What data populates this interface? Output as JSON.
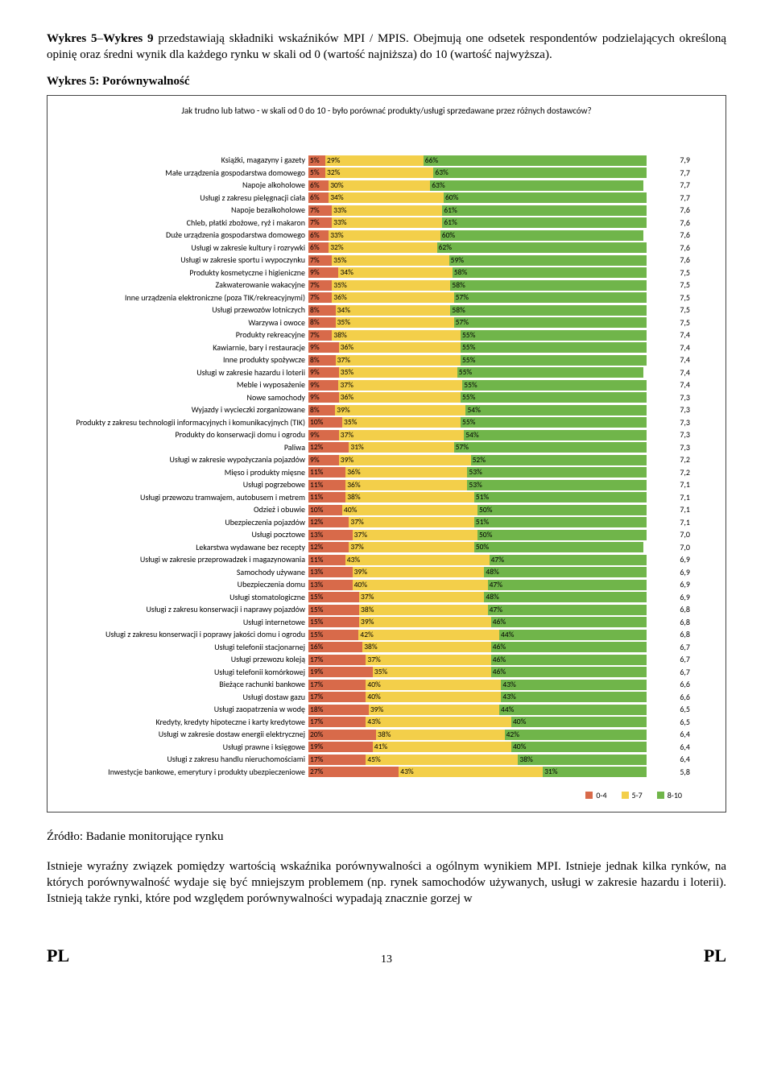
{
  "intro": {
    "bold_prefix": "Wykres 5",
    "dash": "–",
    "bold_mid": "Wykres 9",
    "text": " przedstawiają składniki wskaźników MPI / MPIS. Obejmują one odsetek respondentów podzielających określoną opinię oraz średni wynik dla każdego rynku w skali od 0 (wartość najniższa) do 10 (wartość najwyższa)."
  },
  "chart_heading": "Wykres 5: Porównywalność",
  "chart_question": "Jak trudno lub łatwo - w skali od 0 do 10 - było porównać produkty/usługi sprzedawane przez różnych dostawców?",
  "legend": {
    "low": "0-4",
    "mid": "5-7",
    "high": "8-10"
  },
  "colors": {
    "low": "#d86a4a",
    "mid": "#f3cf4a",
    "high": "#70b54a"
  },
  "rows": [
    {
      "label": "Książki, magazyny i gazety",
      "low": 5,
      "mid": 29,
      "high": 66,
      "score": "7,9"
    },
    {
      "label": "Małe urządzenia gospodarstwa domowego",
      "low": 5,
      "mid": 32,
      "high": 63,
      "score": "7,7"
    },
    {
      "label": "Napoje alkoholowe",
      "low": 6,
      "mid": 30,
      "high": 63,
      "score": "7,7"
    },
    {
      "label": "Usługi z zakresu pielęgnacji ciała",
      "low": 6,
      "mid": 34,
      "high": 60,
      "score": "7,7"
    },
    {
      "label": "Napoje bezalkoholowe",
      "low": 7,
      "mid": 33,
      "high": 61,
      "score": "7,6"
    },
    {
      "label": "Chleb, płatki zbożowe, ryż i makaron",
      "low": 7,
      "mid": 33,
      "high": 61,
      "score": "7,6"
    },
    {
      "label": "Duże urządzenia gospodarstwa domowego",
      "low": 6,
      "mid": 33,
      "high": 60,
      "score": "7,6"
    },
    {
      "label": "Usługi w zakresie kultury i rozrywki",
      "low": 6,
      "mid": 32,
      "high": 62,
      "score": "7,6"
    },
    {
      "label": "Usługi w zakresie sportu i wypoczynku",
      "low": 7,
      "mid": 35,
      "high": 59,
      "score": "7,6"
    },
    {
      "label": "Produkty kosmetyczne i higieniczne",
      "low": 9,
      "mid": 34,
      "high": 58,
      "score": "7,5"
    },
    {
      "label": "Zakwaterowanie wakacyjne",
      "low": 7,
      "mid": 35,
      "high": 58,
      "score": "7,5"
    },
    {
      "label": "Inne urządzenia elektroniczne (poza TIK/rekreacyjnymi)",
      "low": 7,
      "mid": 36,
      "high": 57,
      "score": "7,5"
    },
    {
      "label": "Usługi przewozów lotniczych",
      "low": 8,
      "mid": 34,
      "high": 58,
      "score": "7,5"
    },
    {
      "label": "Warzywa i owoce",
      "low": 8,
      "mid": 35,
      "high": 57,
      "score": "7,5"
    },
    {
      "label": "Produkty rekreacyjne",
      "low": 7,
      "mid": 38,
      "high": 55,
      "score": "7,4"
    },
    {
      "label": "Kawiarnie, bary i restauracje",
      "low": 9,
      "mid": 36,
      "high": 55,
      "score": "7,4"
    },
    {
      "label": "Inne produkty spożywcze",
      "low": 8,
      "mid": 37,
      "high": 55,
      "score": "7,4"
    },
    {
      "label": "Usługi w zakresie hazardu i loterii",
      "low": 9,
      "mid": 35,
      "high": 55,
      "score": "7,4"
    },
    {
      "label": "Meble i wyposażenie",
      "low": 9,
      "mid": 37,
      "high": 55,
      "score": "7,4"
    },
    {
      "label": "Nowe samochody",
      "low": 9,
      "mid": 36,
      "high": 55,
      "score": "7,3"
    },
    {
      "label": "Wyjazdy i wycieczki zorganizowane",
      "low": 8,
      "mid": 39,
      "high": 54,
      "score": "7,3"
    },
    {
      "label": "Produkty z zakresu technologii informacyjnych i komunikacyjnych (TIK)",
      "low": 10,
      "mid": 35,
      "high": 55,
      "score": "7,3"
    },
    {
      "label": "Produkty do konserwacji domu i ogrodu",
      "low": 9,
      "mid": 37,
      "high": 54,
      "score": "7,3"
    },
    {
      "label": "Paliwa",
      "low": 12,
      "mid": 31,
      "high": 57,
      "score": "7,3"
    },
    {
      "label": "Usługi w zakresie wypożyczania pojazdów",
      "low": 9,
      "mid": 39,
      "high": 52,
      "score": "7,2"
    },
    {
      "label": "Mięso i produkty mięsne",
      "low": 11,
      "mid": 36,
      "high": 53,
      "score": "7,2"
    },
    {
      "label": "Usługi pogrzebowe",
      "low": 11,
      "mid": 36,
      "high": 53,
      "score": "7,1"
    },
    {
      "label": "Usługi przewozu tramwajem, autobusem i metrem",
      "low": 11,
      "mid": 38,
      "high": 51,
      "score": "7,1"
    },
    {
      "label": "Odzież i obuwie",
      "low": 10,
      "mid": 40,
      "high": 50,
      "score": "7,1"
    },
    {
      "label": "Ubezpieczenia pojazdów",
      "low": 12,
      "mid": 37,
      "high": 51,
      "score": "7,1"
    },
    {
      "label": "Usługi pocztowe",
      "low": 13,
      "mid": 37,
      "high": 50,
      "score": "7,0"
    },
    {
      "label": "Lekarstwa wydawane bez recepty",
      "low": 12,
      "mid": 37,
      "high": 50,
      "score": "7,0"
    },
    {
      "label": "Usługi w zakresie przeprowadzek i magazynowania",
      "low": 11,
      "mid": 43,
      "high": 47,
      "score": "6,9"
    },
    {
      "label": "Samochody używane",
      "low": 13,
      "mid": 39,
      "high": 48,
      "score": "6,9"
    },
    {
      "label": "Ubezpieczenia domu",
      "low": 13,
      "mid": 40,
      "high": 47,
      "score": "6,9"
    },
    {
      "label": "Usługi stomatologiczne",
      "low": 15,
      "mid": 37,
      "high": 48,
      "score": "6,9"
    },
    {
      "label": "Usługi z zakresu konserwacji i naprawy pojazdów",
      "low": 15,
      "mid": 38,
      "high": 47,
      "score": "6,8"
    },
    {
      "label": "Usługi internetowe",
      "low": 15,
      "mid": 39,
      "high": 46,
      "score": "6,8"
    },
    {
      "label": "Usługi z zakresu konserwacji i poprawy jakości domu i ogrodu",
      "low": 15,
      "mid": 42,
      "high": 44,
      "score": "6,8"
    },
    {
      "label": "Usługi telefonii stacjonarnej",
      "low": 16,
      "mid": 38,
      "high": 46,
      "score": "6,7"
    },
    {
      "label": "Usługi przewozu koleją",
      "low": 17,
      "mid": 37,
      "high": 46,
      "score": "6,7"
    },
    {
      "label": "Usługi telefonii komórkowej",
      "low": 19,
      "mid": 35,
      "high": 46,
      "score": "6,7"
    },
    {
      "label": "Bieżące rachunki bankowe",
      "low": 17,
      "mid": 40,
      "high": 43,
      "score": "6,6"
    },
    {
      "label": "Usługi dostaw gazu",
      "low": 17,
      "mid": 40,
      "high": 43,
      "score": "6,6"
    },
    {
      "label": "Usługi zaopatrzenia w wodę",
      "low": 18,
      "mid": 39,
      "high": 44,
      "score": "6,5"
    },
    {
      "label": "Kredyty, kredyty hipoteczne i karty kredytowe",
      "low": 17,
      "mid": 43,
      "high": 40,
      "score": "6,5"
    },
    {
      "label": "Usługi w zakresie dostaw energii elektrycznej",
      "low": 20,
      "mid": 38,
      "high": 42,
      "score": "6,4"
    },
    {
      "label": "Usługi prawne i księgowe",
      "low": 19,
      "mid": 41,
      "high": 40,
      "score": "6,4"
    },
    {
      "label": "Usługi z zakresu handlu nieruchomościami",
      "low": 17,
      "mid": 45,
      "high": 38,
      "score": "6,4"
    },
    {
      "label": "Inwestycje bankowe, emerytury i produkty ubezpieczeniowe",
      "low": 27,
      "mid": 43,
      "high": 31,
      "score": "5,8"
    }
  ],
  "source": "Źródło: Badanie monitorujące rynku",
  "body_text": "Istnieje wyraźny związek pomiędzy wartością wskaźnika porównywalności a ogólnym wynikiem MPI. Istnieje jednak kilka rynków, na których porównywalność wydaje się być mniejszym problemem (np. rynek samochodów używanych, usługi w zakresie hazardu i loterii). Istnieją także rynki, które pod względem porównywalności wypadają znacznie gorzej w",
  "footer": {
    "left": "PL",
    "page": "13",
    "right": "PL"
  }
}
